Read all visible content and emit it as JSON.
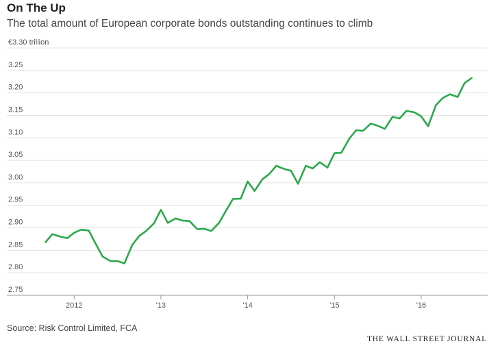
{
  "chart_data": {
    "type": "line",
    "title": "On The Up",
    "subtitle": "The total amount of European corporate bonds outstanding continues to climb",
    "unit_label": "€3.30 trillion",
    "ylim": [
      2.75,
      3.3
    ],
    "xlim": [
      2011.58,
      2016.75
    ],
    "grid": true,
    "y_ticks": [
      2.75,
      2.8,
      2.85,
      2.9,
      2.95,
      3.0,
      3.05,
      3.1,
      3.15,
      3.2,
      3.25,
      3.3
    ],
    "y_tick_labels": [
      "2.75",
      "2.80",
      "2.85",
      "2.90",
      "2.95",
      "3.00",
      "3.05",
      "3.10",
      "3.15",
      "3.20",
      "3.25",
      "€3.30 trillion"
    ],
    "x_ticks": [
      2012,
      2013,
      2014,
      2015,
      2016
    ],
    "x_tick_labels": [
      "2012",
      "'13",
      "'14",
      "'15",
      "'16"
    ],
    "color": "#2aa84a",
    "series": [
      {
        "x": [
          2011.67,
          2011.75,
          2011.83,
          2011.92,
          2012.0,
          2012.08,
          2012.17,
          2012.25,
          2012.33,
          2012.42,
          2012.5,
          2012.58,
          2012.67,
          2012.75,
          2012.83,
          2012.92,
          2013.0,
          2013.08,
          2013.17,
          2013.25,
          2013.33,
          2013.42,
          2013.5,
          2013.58,
          2013.67,
          2013.75,
          2013.83,
          2013.92,
          2014.0,
          2014.08,
          2014.17,
          2014.25,
          2014.33,
          2014.42,
          2014.5,
          2014.58,
          2014.67,
          2014.75,
          2014.83,
          2014.92,
          2015.0,
          2015.08,
          2015.17,
          2015.25,
          2015.33,
          2015.42,
          2015.5,
          2015.58,
          2015.67,
          2015.75,
          2015.83,
          2015.92,
          2016.0,
          2016.08,
          2016.17,
          2016.25,
          2016.33,
          2016.42,
          2016.5,
          2016.58
        ],
        "values": [
          2.868,
          2.886,
          2.881,
          2.877,
          2.889,
          2.896,
          2.894,
          2.864,
          2.836,
          2.826,
          2.826,
          2.821,
          2.862,
          2.882,
          2.893,
          2.91,
          2.94,
          2.911,
          2.921,
          2.916,
          2.915,
          2.897,
          2.898,
          2.893,
          2.911,
          2.938,
          2.964,
          2.965,
          3.003,
          2.982,
          3.008,
          3.02,
          3.038,
          3.031,
          3.027,
          2.998,
          3.038,
          3.032,
          3.046,
          3.034,
          3.066,
          3.067,
          3.098,
          3.117,
          3.116,
          3.132,
          3.127,
          3.12,
          3.147,
          3.143,
          3.16,
          3.157,
          3.148,
          3.126,
          3.173,
          3.189,
          3.197,
          3.191,
          3.222,
          3.233
        ]
      }
    ]
  },
  "source": "Source: Risk Control Limited, FCA",
  "publisher": "THE WALL STREET JOURNAL"
}
